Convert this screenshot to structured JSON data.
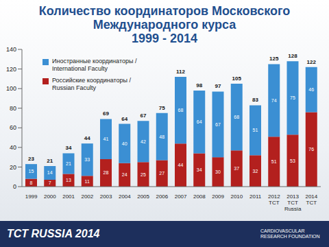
{
  "chart_data": {
    "type": "bar",
    "title": "Количество координаторов Московского\nМеждународного курса\n1999 - 2014",
    "categories": [
      "1999",
      "2000",
      "2001",
      "2002",
      "2003",
      "2004",
      "2005",
      "2006",
      "2007",
      "2008",
      "2009",
      "2010",
      "2011",
      "2012 TCT",
      "2013 TCT Russia",
      "2014 TCT"
    ],
    "series": [
      {
        "name": "Иностранные координаторы / International Faculty",
        "color": "#3b8fd3",
        "values": [
          15,
          14,
          21,
          33,
          41,
          40,
          42,
          48,
          68,
          64,
          67,
          68,
          51,
          74,
          75,
          46
        ]
      },
      {
        "name": "Российские координаторы / Russian Faculty",
        "color": "#b3201e",
        "values": [
          8,
          7,
          13,
          11,
          28,
          24,
          25,
          27,
          44,
          34,
          30,
          37,
          32,
          51,
          53,
          76
        ]
      }
    ],
    "totals": [
      23,
      21,
      34,
      44,
      69,
      64,
      67,
      75,
      112,
      98,
      97,
      105,
      83,
      125,
      128,
      122
    ],
    "ylim": [
      0,
      140
    ],
    "yticks": [
      0,
      20,
      40,
      60,
      80,
      100,
      120,
      140
    ],
    "stacked": true,
    "data_labels": true,
    "grid": false,
    "legend": "upper left"
  },
  "footer": {
    "text": "TCT RUSSIA 2014",
    "logo": "CARDIOVASCULAR RESEARCH FOUNDATION"
  }
}
